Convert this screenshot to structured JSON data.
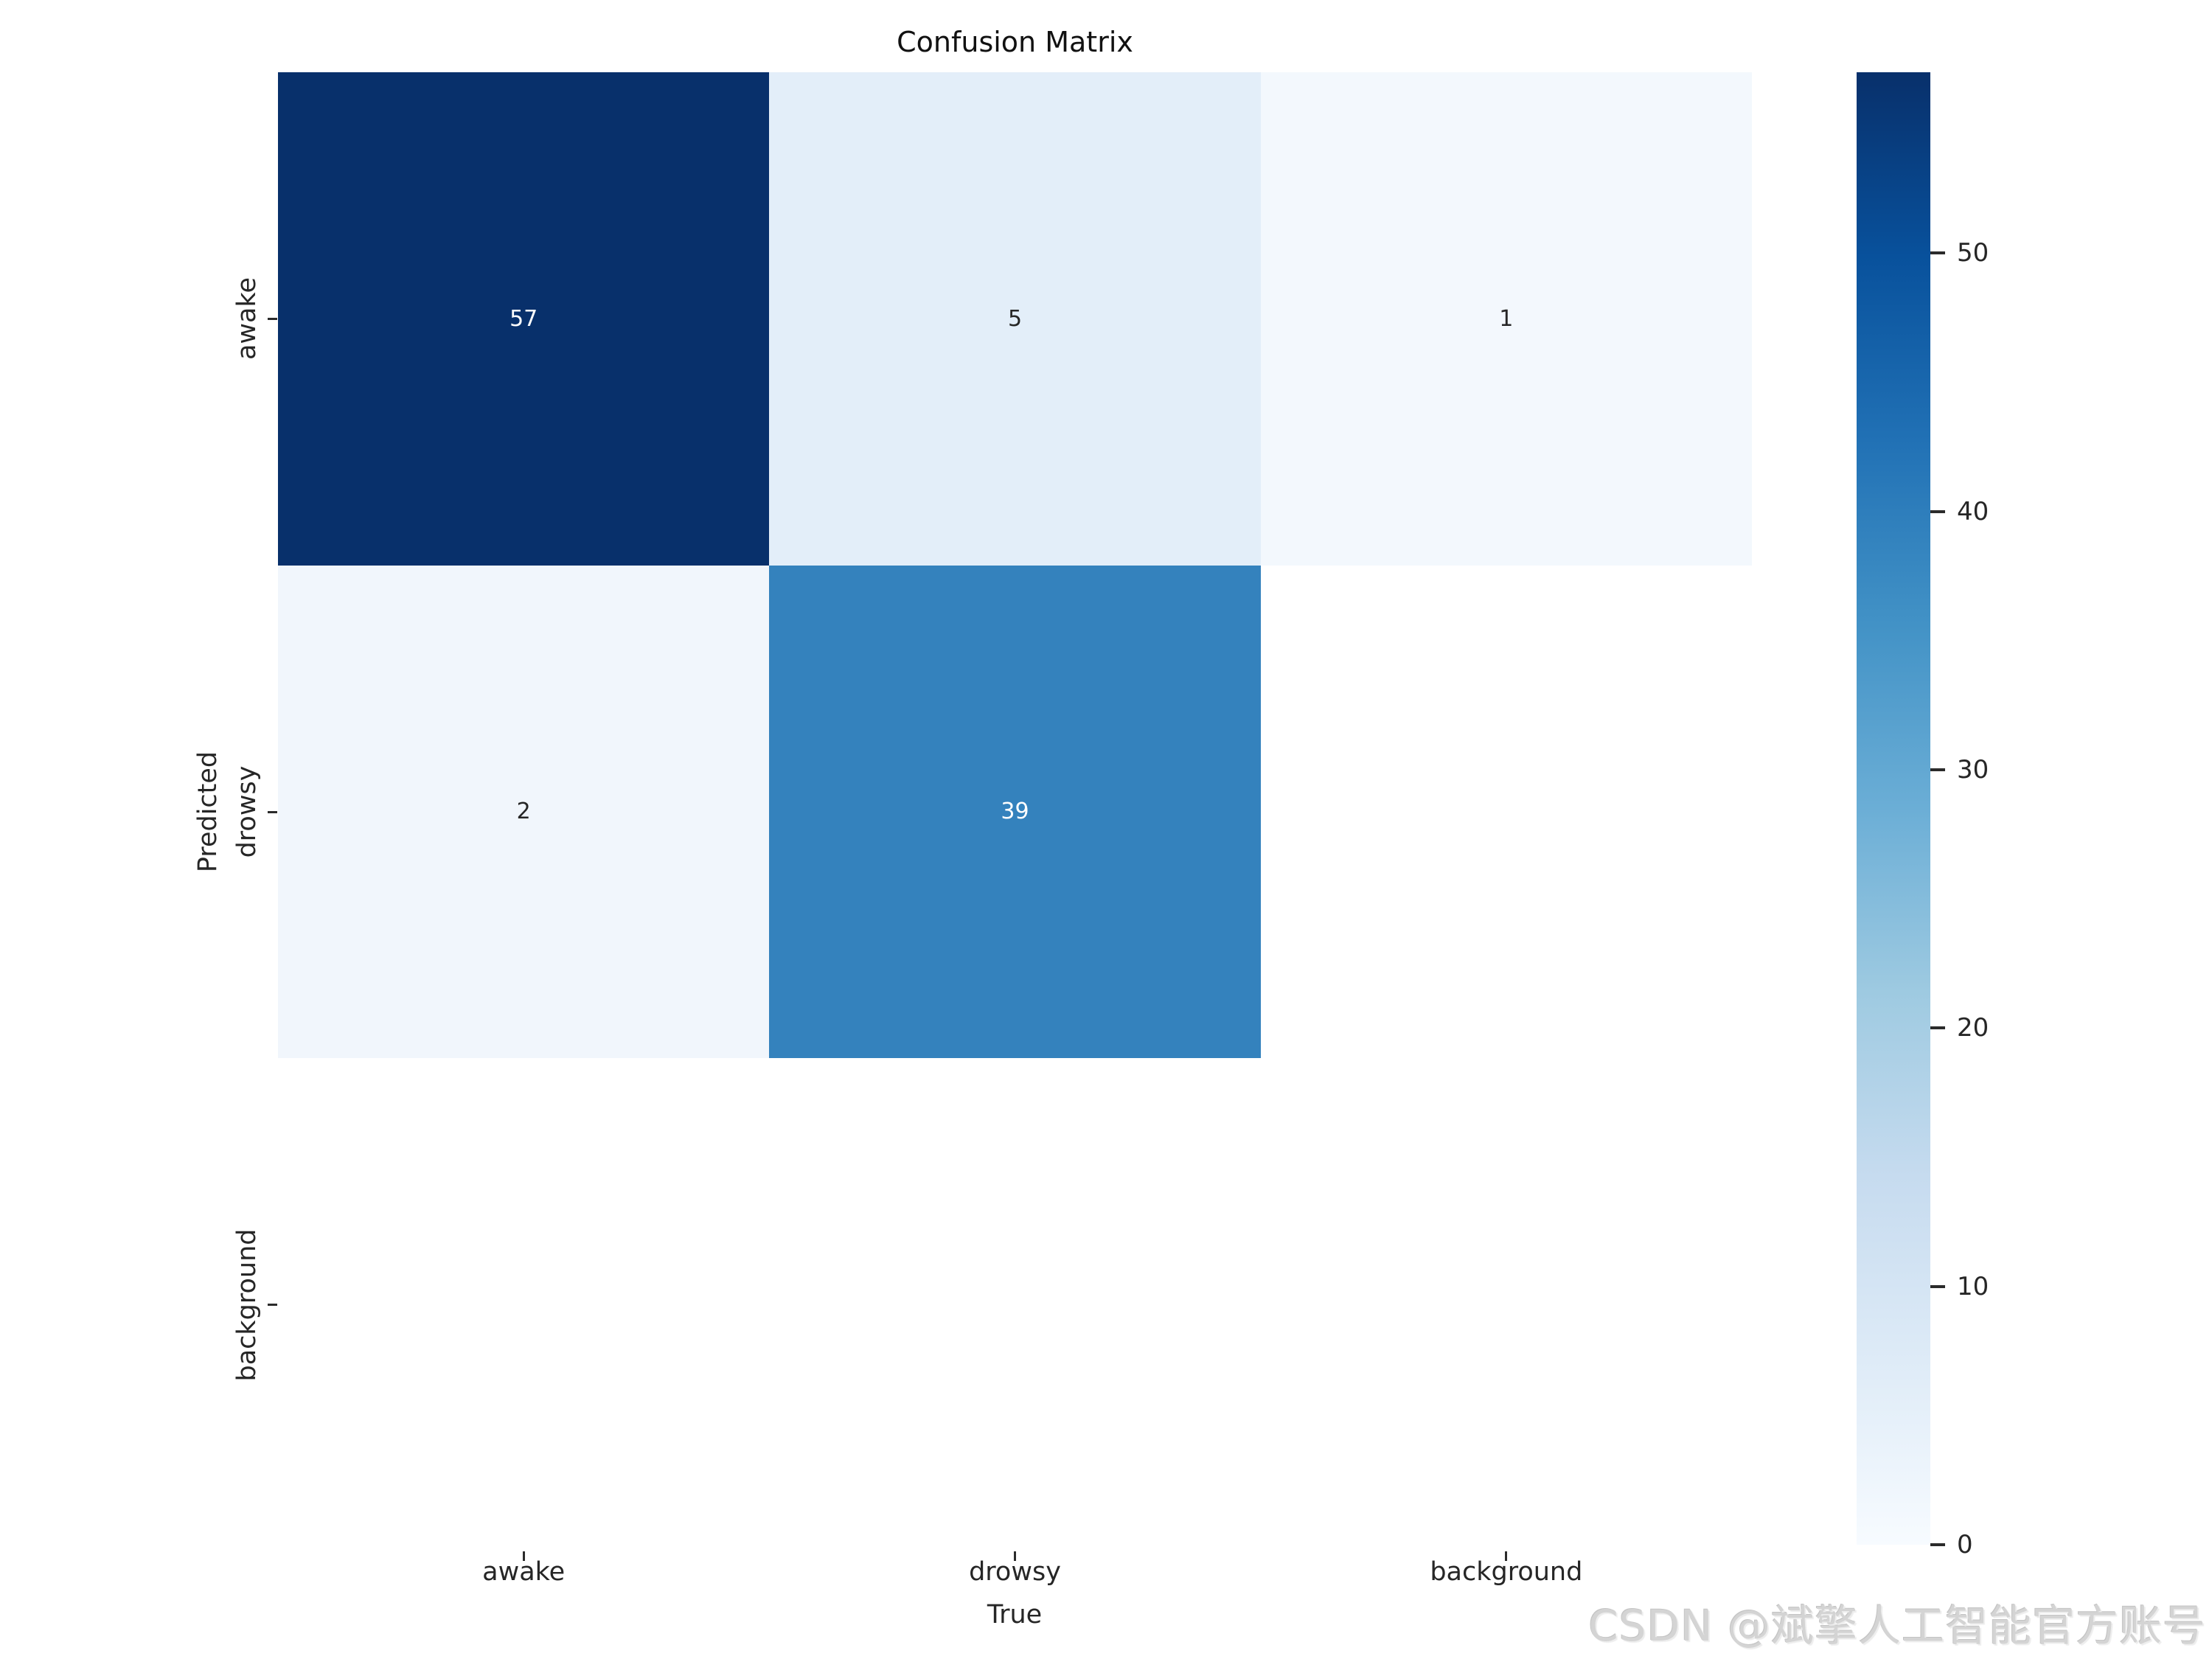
{
  "watermark": "CSDN @斌擎人工智能官方账号",
  "colors": {
    "background": "#ffffff",
    "title_text": "#111111",
    "tick_text": "#262626",
    "annotation_light": "#ffffff",
    "annotation_dark": "#262626",
    "watermark_text": "#d4d4d4",
    "masked_cell": "#ffffff"
  },
  "chart_data": {
    "type": "heatmap",
    "title": "Confusion Matrix",
    "xlabel": "True",
    "ylabel": "Predicted",
    "x_categories": [
      "awake",
      "drowsy",
      "background"
    ],
    "y_categories": [
      "awake",
      "drowsy",
      "background"
    ],
    "matrix": [
      [
        57,
        5,
        1
      ],
      [
        2,
        39,
        null
      ],
      [
        null,
        null,
        null
      ]
    ],
    "annotations": [
      [
        "57",
        "5",
        "1"
      ],
      [
        "2",
        "39",
        ""
      ],
      [
        "",
        "",
        ""
      ]
    ],
    "vmin": 0,
    "vmax": 57,
    "colormap": "Blues",
    "grid": false,
    "legend_position": "right-colorbar",
    "colorbar_ticks": [
      0,
      10,
      20,
      30,
      40,
      50
    ],
    "cell_colors": [
      [
        "#08306b",
        "#e3eef9",
        "#f3f8fd"
      ],
      [
        "#f1f6fc",
        "#3482bd",
        "#ffffff"
      ],
      [
        "#ffffff",
        "#ffffff",
        "#ffffff"
      ]
    ],
    "cell_text_colors": [
      [
        "#ffffff",
        "#262626",
        "#262626"
      ],
      [
        "#262626",
        "#ffffff",
        "#262626"
      ],
      [
        "#262626",
        "#262626",
        "#262626"
      ]
    ],
    "colormap_stops": [
      "#f7fbff",
      "#deebf7",
      "#c6dbef",
      "#9ecae1",
      "#6baed6",
      "#4292c6",
      "#2171b5",
      "#08519c",
      "#08306b"
    ]
  }
}
